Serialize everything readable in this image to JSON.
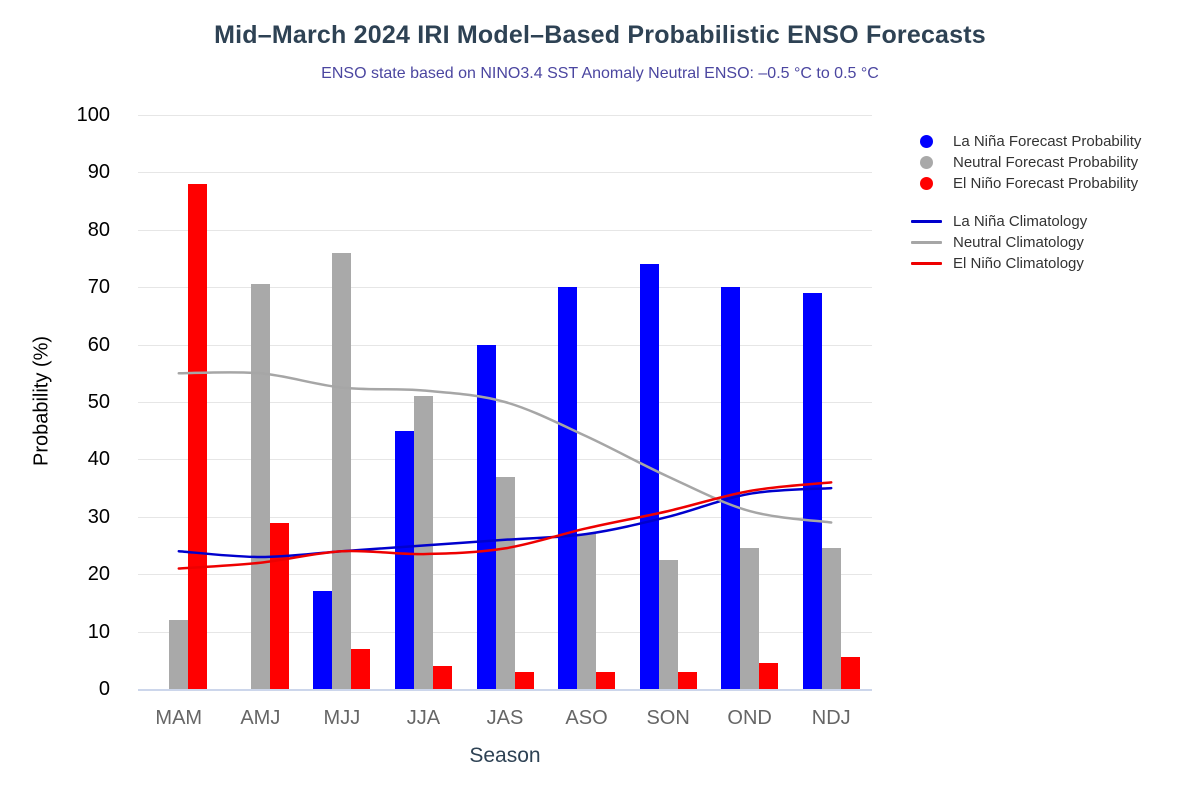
{
  "title": "Mid–March 2024 IRI Model–Based Probabilistic ENSO Forecasts",
  "subtitle": "ENSO state based on NINO3.4 SST Anomaly Neutral ENSO: –0.5 °C to 0.5 °C",
  "chart_data": {
    "type": "bar",
    "subtype": "grouped bars with climatology spline overlays",
    "categories": [
      "MAM",
      "AMJ",
      "MJJ",
      "JJA",
      "JAS",
      "ASO",
      "SON",
      "OND",
      "NDJ"
    ],
    "xlabel": "Season",
    "ylabel": "Probability (%)",
    "ylim": [
      0,
      100
    ],
    "ytick_step": 10,
    "grid": true,
    "legend_position": "right",
    "series": [
      {
        "name": "La Niña Forecast Probability",
        "type": "bar",
        "color": "#0000ff",
        "values": [
          0,
          0,
          17,
          45,
          60,
          70,
          74,
          70,
          69
        ]
      },
      {
        "name": "Neutral Forecast Probability",
        "type": "bar",
        "color": "#a9a9a9",
        "values": [
          12,
          70.5,
          76,
          51,
          37,
          27,
          22.5,
          24.5,
          24.5
        ]
      },
      {
        "name": "El Niño Forecast Probability",
        "type": "bar",
        "color": "#ff0000",
        "values": [
          88,
          29,
          7,
          4,
          3,
          3,
          3,
          4.5,
          5.5
        ]
      },
      {
        "name": "La Niña Climatology",
        "type": "spline",
        "color": "#0000cd",
        "values": [
          24,
          23,
          24,
          25,
          26,
          27,
          30,
          34,
          35
        ]
      },
      {
        "name": "Neutral Climatology",
        "type": "spline",
        "color": "#a6a6a6",
        "values": [
          55,
          55,
          52.5,
          52,
          50,
          44,
          37,
          31,
          29
        ]
      },
      {
        "name": "El Niño Climatology",
        "type": "spline",
        "color": "#ee0000",
        "values": [
          21,
          22,
          24,
          23.5,
          24.5,
          28,
          31,
          34.5,
          36
        ]
      }
    ]
  },
  "colors": {
    "background": "#ffffff",
    "gridline": "#e6e6e6",
    "axis_line": "#ccd6eb",
    "title": "#2e4254",
    "subtitle": "#4b46a0",
    "y_tick": "#000000",
    "y_axis_title": "#000000",
    "x_tick": "#666666",
    "x_axis_title": "#2e4254",
    "legend_text": "#333333"
  }
}
